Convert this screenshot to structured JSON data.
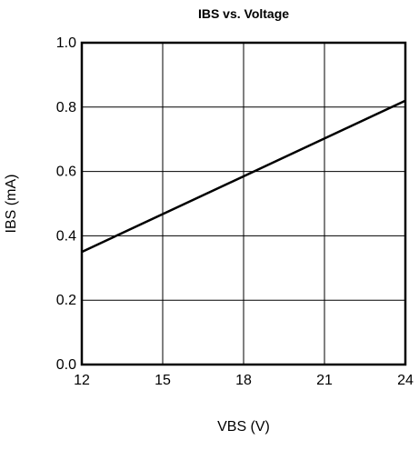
{
  "chart_data": {
    "type": "line",
    "title": "IBS vs. Voltage",
    "xlabel": "VBS (V)",
    "ylabel": "IBS (mA)",
    "xlim": [
      12,
      24
    ],
    "ylim": [
      0.0,
      1.0
    ],
    "x_ticks": [
      12,
      15,
      18,
      21,
      24
    ],
    "x_tick_labels": [
      "12",
      "15",
      "18",
      "21",
      "24"
    ],
    "y_ticks": [
      0.0,
      0.2,
      0.4,
      0.6,
      0.8,
      1.0
    ],
    "y_tick_labels": [
      "0.0",
      "0.2",
      "0.4",
      "0.6",
      "0.8",
      "1.0"
    ],
    "grid": true,
    "series": [
      {
        "x": [
          12,
          24
        ],
        "y": [
          0.35,
          0.82
        ]
      }
    ],
    "colors": {
      "line": "#000000",
      "grid": "#000000",
      "frame": "#000000"
    }
  }
}
